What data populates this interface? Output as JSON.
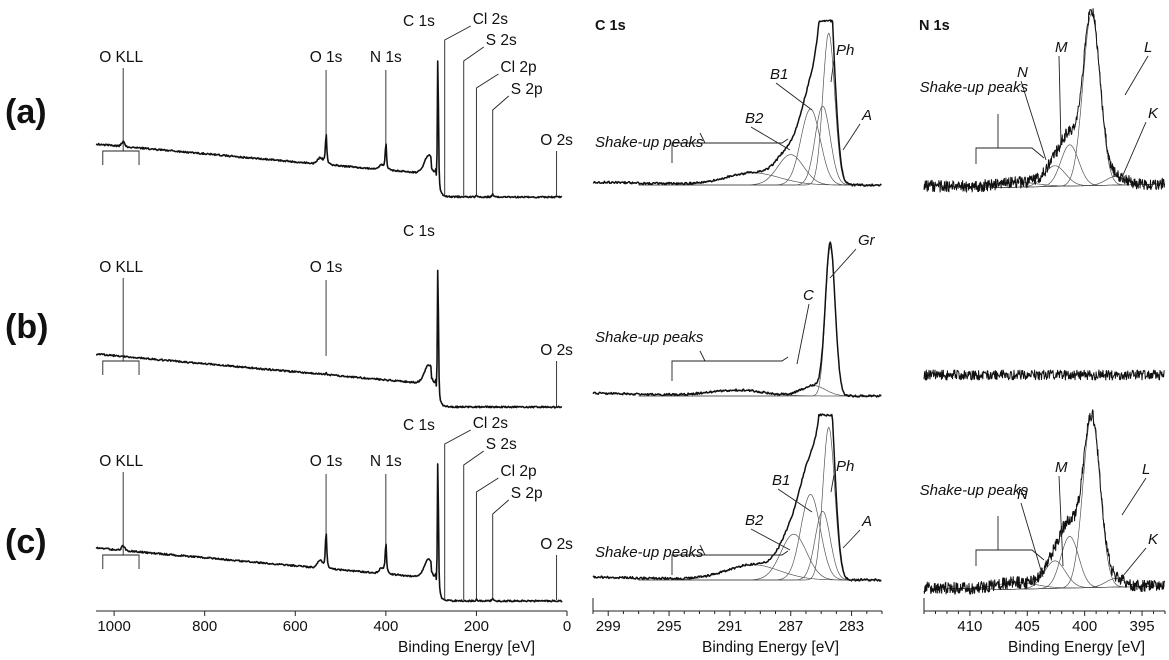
{
  "figure": {
    "row_labels": [
      "(a)",
      "(b)",
      "(c)"
    ],
    "xlabel": "Binding Energy [eV]",
    "headers": {
      "c1s": "C 1s",
      "n1s": "N 1s"
    }
  },
  "chart_data": [
    {
      "type": "line",
      "panel": "survey",
      "xlabel": "Binding Energy [eV]",
      "xlim": [
        1040,
        0
      ],
      "xticks": [
        1000,
        800,
        600,
        400,
        200,
        0
      ],
      "x_reversed": true,
      "series": [
        {
          "row": "a",
          "peaks": [
            {
              "label": "O KLL",
              "be": 980,
              "height": 0.03
            },
            {
              "label": "O 1s",
              "be": 532,
              "height": 0.2
            },
            {
              "label": "N 1s",
              "be": 400,
              "height": 0.17
            },
            {
              "label": "C 1s",
              "be": 285,
              "height": 1.0
            },
            {
              "label": "Cl 2s",
              "be": 270,
              "height": 0.0
            },
            {
              "label": "S 2s",
              "be": 228,
              "height": 0.0
            },
            {
              "label": "Cl 2p",
              "be": 200,
              "height": 0.01
            },
            {
              "label": "S 2p",
              "be": 164,
              "height": 0.02
            },
            {
              "label": "O 2s",
              "be": 23,
              "height": 0.0
            }
          ]
        },
        {
          "row": "b",
          "peaks": [
            {
              "label": "O KLL",
              "be": 980,
              "height": 0.0
            },
            {
              "label": "O 1s",
              "be": 532,
              "height": 0.01
            },
            {
              "label": "C 1s",
              "be": 285,
              "height": 1.0
            },
            {
              "label": "O 2s",
              "be": 23,
              "height": 0.0
            }
          ]
        },
        {
          "row": "c",
          "peaks": [
            {
              "label": "O KLL",
              "be": 980,
              "height": 0.03
            },
            {
              "label": "O 1s",
              "be": 532,
              "height": 0.24
            },
            {
              "label": "N 1s",
              "be": 400,
              "height": 0.2
            },
            {
              "label": "C 1s",
              "be": 285,
              "height": 1.0
            },
            {
              "label": "Cl 2s",
              "be": 270,
              "height": 0.0
            },
            {
              "label": "S 2s",
              "be": 228,
              "height": 0.0
            },
            {
              "label": "Cl 2p",
              "be": 200,
              "height": 0.01
            },
            {
              "label": "S 2p",
              "be": 164,
              "height": 0.02
            },
            {
              "label": "O 2s",
              "be": 23,
              "height": 0.0
            }
          ]
        }
      ]
    },
    {
      "type": "line",
      "panel": "C 1s",
      "xlabel": "Binding Energy [eV]",
      "xlim": [
        300,
        281
      ],
      "xticks": [
        299,
        295,
        291,
        287,
        283
      ],
      "x_reversed": true,
      "series": [
        {
          "row": "a",
          "components": [
            {
              "label": "Ph",
              "be": 284.5,
              "height": 1.0
            },
            {
              "label": "A",
              "be": 284.9,
              "height": 0.52
            },
            {
              "label": "B1",
              "be": 285.7,
              "height": 0.5
            },
            {
              "label": "B2",
              "be": 287.0,
              "height": 0.2
            },
            {
              "label": "Shake-up peaks",
              "be": 289.5,
              "height": 0.08
            }
          ]
        },
        {
          "row": "b",
          "components": [
            {
              "label": "Gr",
              "be": 284.4,
              "height": 1.0
            },
            {
              "label": "C",
              "be": 285.5,
              "height": 0.07
            },
            {
              "label": "Shake-up peaks",
              "be": 290.5,
              "height": 0.04
            }
          ]
        },
        {
          "row": "c",
          "components": [
            {
              "label": "Ph",
              "be": 284.5,
              "height": 1.0
            },
            {
              "label": "A",
              "be": 284.9,
              "height": 0.45
            },
            {
              "label": "B1",
              "be": 285.7,
              "height": 0.56
            },
            {
              "label": "B2",
              "be": 286.8,
              "height": 0.3
            },
            {
              "label": "Shake-up peaks",
              "be": 289.5,
              "height": 0.1
            }
          ]
        }
      ]
    },
    {
      "type": "line",
      "panel": "N 1s",
      "xlabel": "Binding Energy [eV]",
      "xlim": [
        414,
        393
      ],
      "xticks": [
        410,
        405,
        400,
        395
      ],
      "x_reversed": true,
      "series": [
        {
          "row": "a",
          "components": [
            {
              "label": "L",
              "be": 399.4,
              "height": 1.0
            },
            {
              "label": "M",
              "be": 401.3,
              "height": 0.24
            },
            {
              "label": "N",
              "be": 402.6,
              "height": 0.12
            },
            {
              "label": "K",
              "be": 397.3,
              "height": 0.05
            },
            {
              "label": "Shake-up peaks",
              "be": 406.0,
              "height": 0.03
            }
          ]
        },
        {
          "row": "b",
          "components": []
        },
        {
          "row": "c",
          "components": [
            {
              "label": "L",
              "be": 399.4,
              "height": 1.0
            },
            {
              "label": "M",
              "be": 401.3,
              "height": 0.3
            },
            {
              "label": "N",
              "be": 402.6,
              "height": 0.16
            },
            {
              "label": "K",
              "be": 397.3,
              "height": 0.05
            },
            {
              "label": "Shake-up peaks",
              "be": 406.0,
              "height": 0.04
            }
          ]
        }
      ]
    }
  ]
}
